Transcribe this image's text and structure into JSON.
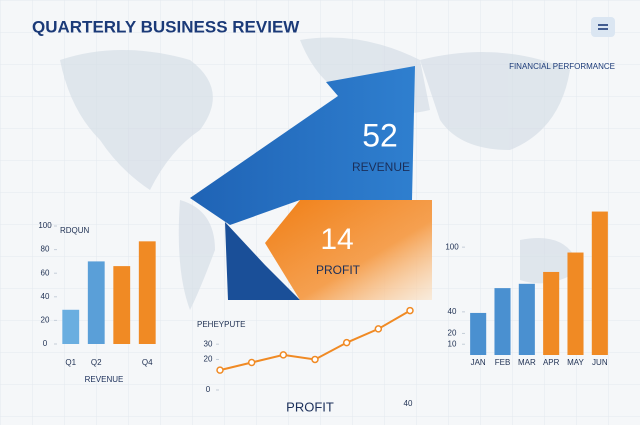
{
  "title": "QUARTERLY BUSINESS REVIEW",
  "subtitle": "FINANCIAL PERFORMANCE",
  "highlights": [
    {
      "value": 52,
      "label": "REVENUE"
    },
    {
      "value": 14,
      "label": "PROFIT"
    }
  ],
  "chart_data": [
    {
      "type": "bar",
      "title": "RDQUN",
      "xlabel": "REVENUE",
      "categories": [
        "Q1",
        "Q2",
        null,
        "Q4"
      ],
      "values": [
        29,
        70,
        66,
        87
      ],
      "colors": [
        "#6aaee0",
        "#5a9fd8",
        "#f08a24",
        "#f08a24"
      ],
      "ylim": [
        0,
        100
      ],
      "yticks": [
        0,
        20,
        40,
        60,
        80,
        100
      ]
    },
    {
      "type": "line",
      "title": "PEHEYPUTE",
      "xlabel": "PROFIT",
      "x_end_label": 40,
      "values": [
        13,
        18,
        23,
        20,
        31,
        40,
        52
      ],
      "color": "#f08a24",
      "ylim": [
        0,
        55
      ],
      "yticks": [
        0,
        20,
        30
      ]
    },
    {
      "type": "bar",
      "categories": [
        "JAN",
        "FEB",
        "MAR",
        "APR",
        "MAY",
        "JUN"
      ],
      "values": [
        39,
        62,
        66,
        77,
        95,
        133
      ],
      "colors": [
        "#4a90d0",
        "#4a90d0",
        "#4a90d0",
        "#f08a24",
        "#f08a24",
        "#f08a24"
      ],
      "ylim": [
        0,
        140
      ],
      "yticks": [
        10,
        20,
        40,
        100
      ]
    }
  ]
}
